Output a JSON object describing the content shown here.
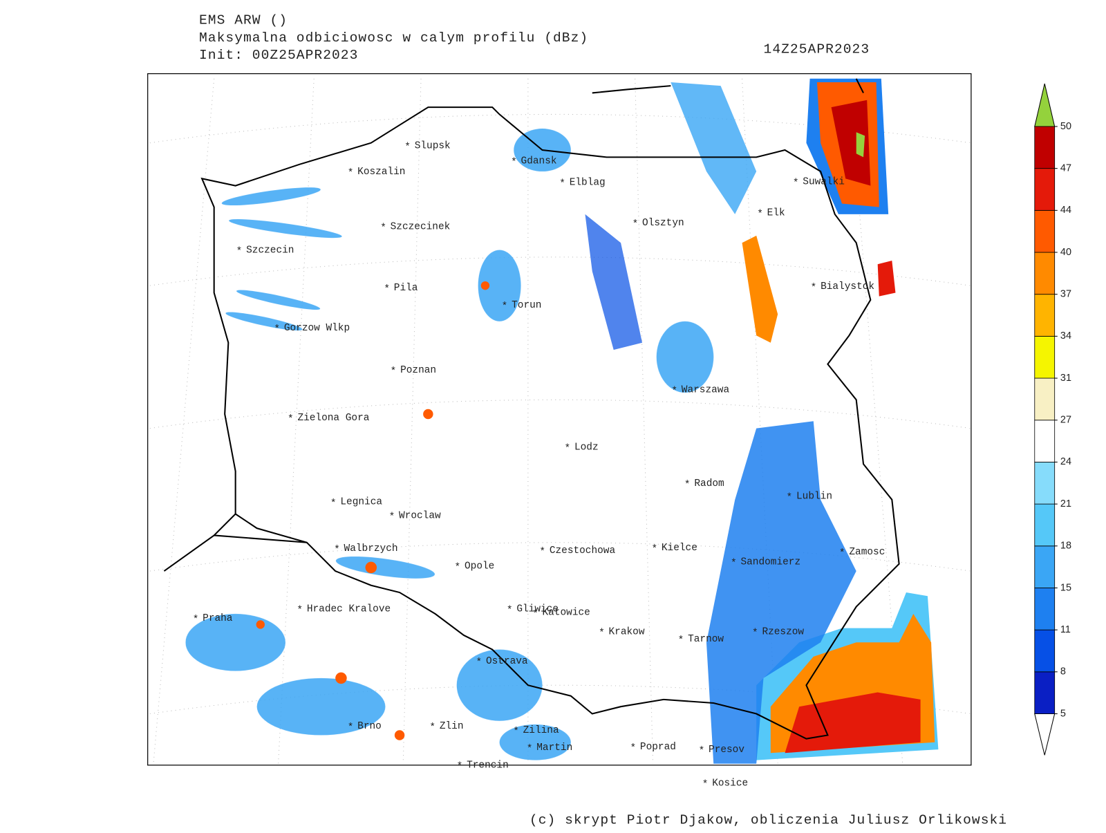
{
  "header": {
    "model": "EMS ARW ()",
    "field": "Maksymalna odbiciowosc w calym profilu (dBz)",
    "init": "Init: 00Z25APR2023",
    "valid": "14Z25APR2023"
  },
  "footer": "(c) skrypt Piotr Djakow, obliczenia Juliusz Orlikowski",
  "city_marker": "*",
  "cities": [
    "Slupsk",
    "Koszalin",
    "Gdansk",
    "Elblag",
    "Olsztyn",
    "Suwalki",
    "Elk",
    "Szczecinek",
    "Szczecin",
    "Bialystok",
    "Pila",
    "Torun",
    "Gorzow Wlkp",
    "Poznan",
    "Warszawa",
    "Zielona Gora",
    "Lodz",
    "Radom",
    "Lublin",
    "Legnica",
    "Wroclaw",
    "Walbrzych",
    "Czestochowa",
    "Kielce",
    "Zamosc",
    "Opole",
    "Sandomierz",
    "Praha",
    "Hradec Kralove",
    "Gliwice",
    "Katowice",
    "Krakow",
    "Tarnow",
    "Rzeszow",
    "Ostrava",
    "Brno",
    "Zlin",
    "Zilina",
    "Martin",
    "Poprad",
    "Presov",
    "Trencin",
    "Kosice"
  ],
  "colorbar": {
    "levels": [
      5,
      8,
      11,
      15,
      18,
      21,
      24,
      27,
      31,
      34,
      37,
      40,
      44,
      47,
      50
    ],
    "colors": [
      "#0a1fc4",
      "#0650e6",
      "#1e80f0",
      "#3aa6f5",
      "#55c8f8",
      "#86dcfb",
      "#ffffff",
      "#f8f0c4",
      "#f5f500",
      "#ffb400",
      "#ff8a00",
      "#ff5a00",
      "#e41a0a",
      "#c00000"
    ],
    "under_color": "#ffffff",
    "over_color": "#94d23c"
  }
}
